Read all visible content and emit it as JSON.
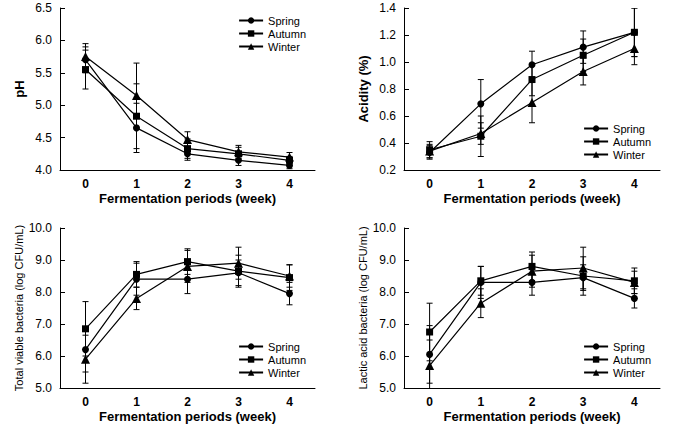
{
  "chart_data": [
    {
      "type": "line",
      "x_label": "Fermentation periods (week)",
      "y_label": "pH",
      "categories": [
        "0",
        "1",
        "2",
        "3",
        "4"
      ],
      "ylim": [
        4.0,
        6.5
      ],
      "yticks": [
        {
          "value": 4.0,
          "label": "4.0"
        },
        {
          "value": 4.5,
          "label": "4.5"
        },
        {
          "value": 5.0,
          "label": "5.0"
        },
        {
          "value": 5.5,
          "label": "5.5"
        },
        {
          "value": 6.0,
          "label": "6.0"
        },
        {
          "value": 6.5,
          "label": "6.5"
        }
      ],
      "grid": false,
      "legend": "upper right",
      "series": [
        {
          "name": "Spring",
          "color": "#000000",
          "marker": "circle",
          "values": [
            5.7,
            4.65,
            4.25,
            4.15,
            4.07
          ],
          "errors": [
            0.2,
            0.38,
            0.1,
            0.08,
            0.05
          ]
        },
        {
          "name": "Autumn",
          "color": "#000000",
          "marker": "square",
          "values": [
            5.55,
            4.83,
            4.33,
            4.25,
            4.15
          ],
          "errors": [
            0.3,
            0.5,
            0.15,
            0.1,
            0.06
          ]
        },
        {
          "name": "Winter",
          "color": "#000000",
          "marker": "triangle",
          "values": [
            5.75,
            5.15,
            4.47,
            4.28,
            4.2
          ],
          "errors": [
            0.2,
            0.5,
            0.12,
            0.1,
            0.07
          ]
        }
      ]
    },
    {
      "type": "line",
      "x_label": "Fermentation periods (week)",
      "y_label": "Acidity (%)",
      "categories": [
        "0",
        "1",
        "2",
        "3",
        "4"
      ],
      "ylim": [
        0.2,
        1.4
      ],
      "yticks": [
        0.2,
        0.4,
        0.6,
        0.8,
        {
          "value": 1.0,
          "label": "1.0"
        },
        1.2,
        1.4
      ],
      "grid": false,
      "legend": "lower right",
      "series": [
        {
          "name": "Spring",
          "color": "#000000",
          "marker": "circle",
          "values": [
            0.33,
            0.69,
            0.98,
            1.11,
            1.22
          ],
          "errors": [
            0.05,
            0.18,
            0.1,
            0.12,
            0.18
          ]
        },
        {
          "name": "Autumn",
          "color": "#000000",
          "marker": "square",
          "values": [
            0.35,
            0.45,
            0.87,
            1.05,
            1.22
          ],
          "errors": [
            0.06,
            0.15,
            0.12,
            0.12,
            0.18
          ]
        },
        {
          "name": "Winter",
          "color": "#000000",
          "marker": "triangle",
          "values": [
            0.34,
            0.47,
            0.7,
            0.93,
            1.1
          ],
          "errors": [
            0.05,
            0.08,
            0.15,
            0.1,
            0.12
          ]
        }
      ]
    },
    {
      "type": "line",
      "x_label": "Fermentation periods (week)",
      "y_label": "Total viable bacteria (log CFU/mL)",
      "categories": [
        "0",
        "1",
        "2",
        "3",
        "4"
      ],
      "ylim": [
        5.0,
        10.0
      ],
      "yticks": [
        {
          "value": 5.0,
          "label": "5.0"
        },
        {
          "value": 6.0,
          "label": "6.0"
        },
        {
          "value": 7.0,
          "label": "7.0"
        },
        {
          "value": 8.0,
          "label": "8.0"
        },
        {
          "value": 9.0,
          "label": "9.0"
        },
        {
          "value": 10.0,
          "label": "10.0"
        }
      ],
      "grid": false,
      "legend": "lower right",
      "series": [
        {
          "name": "Spring",
          "color": "#000000",
          "marker": "circle",
          "values": [
            6.2,
            8.4,
            8.4,
            8.6,
            7.95
          ],
          "errors": [
            0.7,
            0.5,
            0.45,
            0.4,
            0.35
          ]
        },
        {
          "name": "Autumn",
          "color": "#000000",
          "marker": "square",
          "values": [
            6.85,
            8.55,
            8.95,
            8.65,
            8.45
          ],
          "errors": [
            0.85,
            0.4,
            0.4,
            0.5,
            0.4
          ]
        },
        {
          "name": "Winter",
          "color": "#000000",
          "marker": "triangle",
          "values": [
            5.9,
            7.8,
            8.8,
            8.9,
            8.5
          ],
          "errors": [
            0.75,
            0.35,
            0.5,
            0.5,
            0.35
          ]
        }
      ]
    },
    {
      "type": "line",
      "x_label": "Fermentation periods (week)",
      "y_label": "Lactic acid bacteria (log CFU/mL)",
      "categories": [
        "0",
        "1",
        "2",
        "3",
        "4"
      ],
      "ylim": [
        5.0,
        10.0
      ],
      "yticks": [
        {
          "value": 5.0,
          "label": "5.0"
        },
        {
          "value": 6.0,
          "label": "6.0"
        },
        {
          "value": 7.0,
          "label": "7.0"
        },
        {
          "value": 8.0,
          "label": "8.0"
        },
        {
          "value": 9.0,
          "label": "9.0"
        },
        {
          "value": 10.0,
          "label": "10.0"
        }
      ],
      "grid": false,
      "legend": "lower right",
      "series": [
        {
          "name": "Spring",
          "color": "#000000",
          "marker": "circle",
          "values": [
            6.05,
            8.3,
            8.3,
            8.45,
            7.8
          ],
          "errors": [
            0.9,
            0.5,
            0.4,
            0.4,
            0.3
          ]
        },
        {
          "name": "Autumn",
          "color": "#000000",
          "marker": "square",
          "values": [
            6.75,
            8.35,
            8.8,
            8.5,
            8.35
          ],
          "errors": [
            0.9,
            0.45,
            0.45,
            0.6,
            0.4
          ]
        },
        {
          "name": "Winter",
          "color": "#000000",
          "marker": "triangle",
          "values": [
            5.7,
            7.65,
            8.65,
            8.75,
            8.3
          ],
          "errors": [
            0.8,
            0.45,
            0.5,
            0.65,
            0.35
          ]
        }
      ]
    }
  ]
}
